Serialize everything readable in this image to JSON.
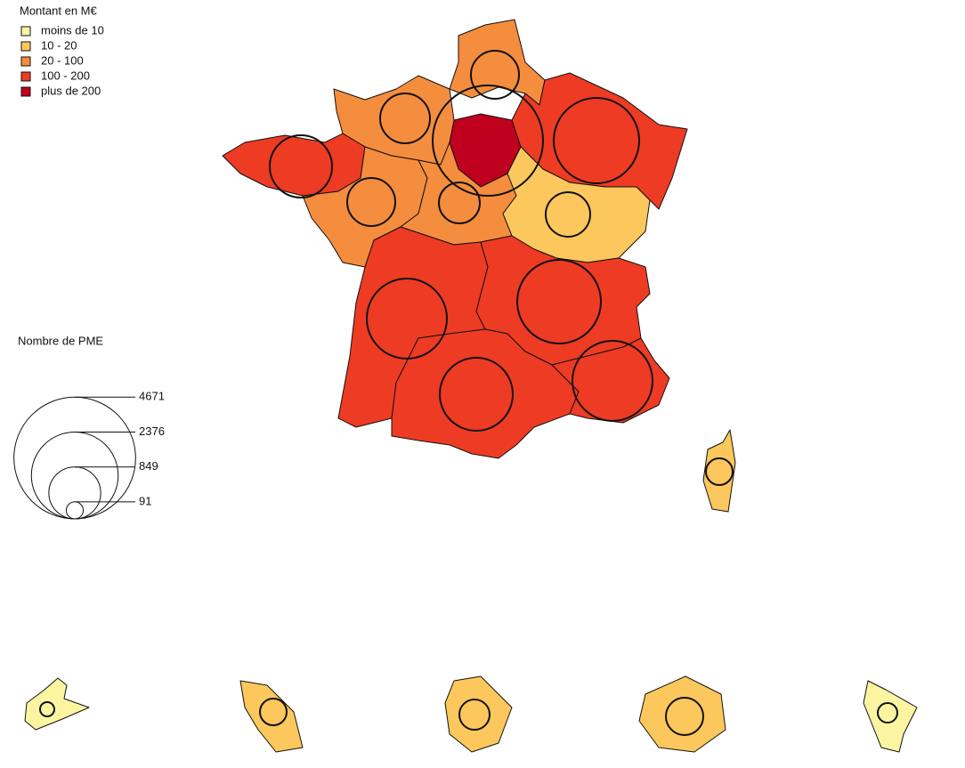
{
  "color_legend": {
    "title": "Montant en M€",
    "items": [
      {
        "label": "moins de 10",
        "color": "#fbf5a2"
      },
      {
        "label": "10 - 20",
        "color": "#fcc75c"
      },
      {
        "label": "20 - 100",
        "color": "#f58d3e"
      },
      {
        "label": "100 - 200",
        "color": "#ee3b24"
      },
      {
        "label": "plus de 200",
        "color": "#c0001f"
      }
    ]
  },
  "size_legend": {
    "title": "Nombre de PME",
    "values": [
      4671,
      2376,
      849,
      91
    ]
  },
  "regions": [
    {
      "pme": 3844,
      "class": 4
    },
    {
      "pme": 729,
      "class": 2
    },
    {
      "pme": 784,
      "class": 2
    },
    {
      "pme": 2304,
      "class": 3
    },
    {
      "pme": 1225,
      "class": 3
    },
    {
      "pme": 729,
      "class": 2
    },
    {
      "pme": 529,
      "class": 2
    },
    {
      "pme": 625,
      "class": 1
    },
    {
      "pme": 2025,
      "class": 3
    },
    {
      "pme": 2209,
      "class": 3
    },
    {
      "pme": 1681,
      "class": 3
    },
    {
      "pme": 2025,
      "class": 3
    },
    {
      "pme": 225,
      "class": 1
    },
    {
      "pme": 64,
      "class": 0
    },
    {
      "pme": 225,
      "class": 1
    },
    {
      "pme": 289,
      "class": 1
    },
    {
      "pme": 441,
      "class": 1
    },
    {
      "pme": 121,
      "class": 0
    }
  ]
}
